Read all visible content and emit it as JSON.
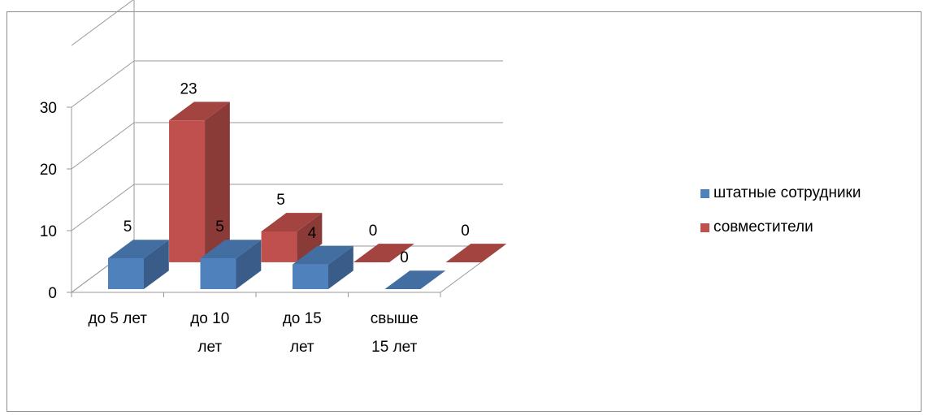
{
  "chart_data": {
    "type": "bar",
    "title": "",
    "xlabel": "",
    "ylabel": "",
    "categories": [
      [
        "до 5 лет"
      ],
      [
        "до 10",
        "лет"
      ],
      [
        "до 15",
        "лет"
      ],
      [
        "свыше",
        "15 лет"
      ]
    ],
    "series": [
      {
        "name": "штатные сотрудники",
        "values": [
          5,
          5,
          4,
          0
        ],
        "color": "#4f81bd"
      },
      {
        "name": "совместители",
        "values": [
          23,
          5,
          0,
          0
        ],
        "color": "#c0504d"
      }
    ],
    "ylim": [
      0,
      30
    ],
    "yticks": [
      0,
      10,
      20,
      30
    ],
    "grid": true,
    "legend": "right"
  }
}
